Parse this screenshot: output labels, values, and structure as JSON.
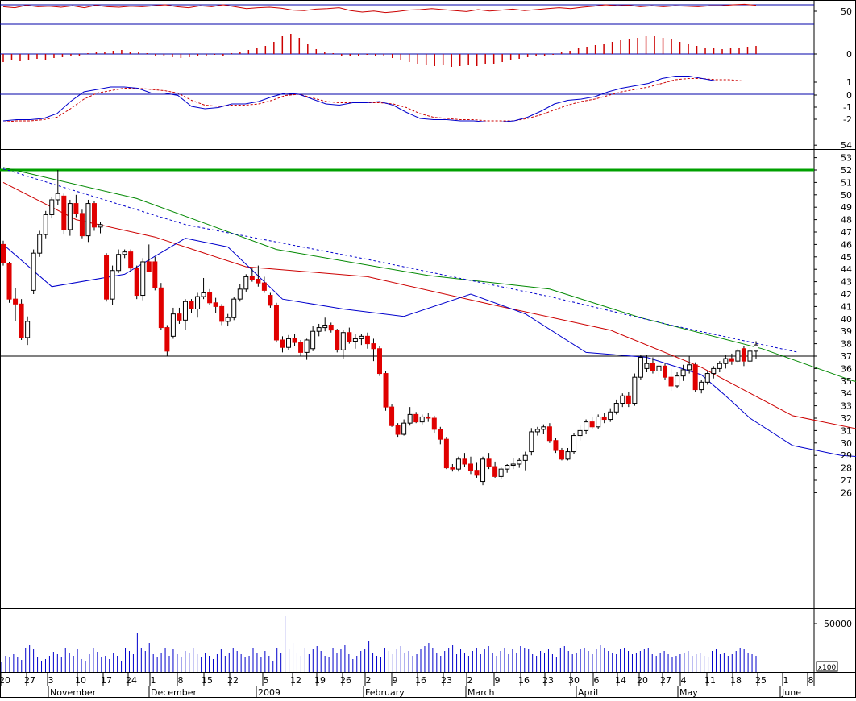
{
  "chart_data": {
    "type": "candlestick",
    "colors": {
      "up_candle": "#ffffff",
      "down_candle": "#e00000",
      "candle_outline": "#000000",
      "ma_short": "#0000cc",
      "ma_mid": "#cc0000",
      "ma_long": "#008800",
      "ma_dashed": "#0000cc",
      "resistance": "#00a000",
      "support": "#000000",
      "oscillator": "#cc0000",
      "histogram": "#cc0000",
      "macd": "#0000cc",
      "macd_signal": "#cc0000",
      "volume": "#0000cc",
      "panel_line": "#0000aa"
    },
    "price_axis": {
      "ticks": [
        "54",
        "53",
        "52",
        "51",
        "50",
        "49",
        "48",
        "47",
        "46",
        "45",
        "44",
        "43",
        "42",
        "41",
        "40",
        "39",
        "38",
        "37",
        "36",
        "35",
        "34",
        "33",
        "32",
        "31",
        "30",
        "29",
        "28",
        "27",
        "26"
      ],
      "range": [
        25,
        55
      ]
    },
    "horizontal_lines": [
      {
        "name": "resistance",
        "value": 52
      },
      {
        "name": "support",
        "value": 37
      }
    ],
    "oscillator_panel": {
      "ticks": [
        "50"
      ],
      "guide_levels": [
        70,
        30
      ]
    },
    "histogram_panel": {
      "ticks": [
        "0"
      ]
    },
    "macd_panel": {
      "ticks": [
        "1",
        "0",
        "-1",
        "-2"
      ]
    },
    "volume_panel": {
      "ticks": [
        "50000"
      ],
      "unit": "x100"
    },
    "date_ticks": [
      "20",
      "27",
      "3",
      "10",
      "17",
      "24",
      "1",
      "8",
      "15",
      "22",
      "5",
      "12",
      "19",
      "26",
      "2",
      "9",
      "16",
      "23",
      "2",
      "9",
      "16",
      "23",
      "30",
      "6",
      "14",
      "20",
      "27",
      "4",
      "11",
      "18",
      "25",
      "1",
      "8"
    ],
    "month_labels": [
      "November",
      "December",
      "2009",
      "February",
      "March",
      "April",
      "May",
      "June"
    ],
    "candles": [
      [
        46.0,
        46.3,
        44.3,
        44.5
      ],
      [
        44.5,
        44.6,
        41.3,
        41.6
      ],
      [
        41.6,
        42.5,
        39.8,
        41.2
      ],
      [
        41.2,
        41.6,
        38.3,
        38.5
      ],
      [
        38.5,
        40.2,
        37.9,
        39.8
      ],
      [
        42.3,
        45.6,
        42.0,
        45.3
      ],
      [
        45.3,
        47.1,
        45.0,
        46.8
      ],
      [
        46.8,
        48.7,
        46.5,
        48.4
      ],
      [
        48.4,
        49.8,
        48.1,
        49.6
      ],
      [
        49.6,
        52.0,
        49.2,
        50.1
      ],
      [
        49.9,
        50.1,
        46.8,
        47.2
      ],
      [
        47.2,
        49.6,
        46.7,
        49.3
      ],
      [
        49.3,
        50.0,
        48.2,
        48.5
      ],
      [
        48.5,
        48.8,
        46.5,
        46.7
      ],
      [
        46.7,
        49.6,
        46.2,
        49.3
      ],
      [
        49.3,
        49.5,
        47.1,
        47.4
      ],
      [
        47.4,
        47.8,
        46.9,
        47.6
      ],
      [
        45.1,
        45.3,
        41.4,
        41.6
      ],
      [
        41.6,
        44.3,
        41.1,
        43.9
      ],
      [
        43.9,
        45.6,
        43.7,
        45.2
      ],
      [
        45.2,
        45.6,
        44.9,
        45.4
      ],
      [
        45.4,
        45.6,
        43.8,
        44.1
      ],
      [
        44.1,
        44.3,
        41.6,
        41.9
      ],
      [
        41.9,
        44.9,
        41.5,
        44.6
      ],
      [
        44.6,
        46.0,
        43.8,
        43.8
      ],
      [
        44.6,
        45.0,
        42.3,
        42.5
      ],
      [
        42.5,
        42.9,
        39.1,
        39.3
      ],
      [
        39.3,
        39.5,
        37.0,
        37.4
      ],
      [
        38.6,
        40.9,
        38.4,
        40.4
      ],
      [
        40.4,
        40.9,
        39.6,
        39.9
      ],
      [
        39.9,
        41.6,
        39.1,
        41.4
      ],
      [
        41.4,
        41.6,
        40.5,
        40.8
      ],
      [
        40.8,
        42.1,
        40.1,
        41.8
      ],
      [
        41.8,
        43.3,
        41.6,
        42.1
      ],
      [
        42.1,
        42.4,
        41.1,
        41.3
      ],
      [
        41.3,
        41.7,
        40.5,
        41.0
      ],
      [
        41.0,
        41.2,
        39.5,
        39.8
      ],
      [
        39.8,
        40.4,
        39.4,
        40.1
      ],
      [
        40.1,
        41.8,
        39.9,
        41.6
      ],
      [
        41.6,
        42.8,
        41.4,
        42.4
      ],
      [
        42.4,
        43.6,
        42.2,
        43.4
      ],
      [
        43.4,
        44.1,
        43.0,
        43.2
      ],
      [
        43.2,
        44.3,
        42.6,
        42.9
      ],
      [
        42.9,
        43.4,
        42.1,
        42.3
      ],
      [
        41.9,
        42.1,
        40.9,
        41.1
      ],
      [
        41.1,
        41.3,
        38.1,
        38.3
      ],
      [
        38.3,
        38.6,
        37.3,
        37.7
      ],
      [
        37.7,
        38.7,
        37.5,
        38.4
      ],
      [
        38.4,
        38.8,
        37.8,
        38.1
      ],
      [
        38.1,
        38.3,
        37.0,
        37.3
      ],
      [
        37.3,
        38.4,
        36.7,
        38.3
      ],
      [
        37.6,
        39.4,
        37.4,
        39.0
      ],
      [
        39.0,
        39.6,
        38.6,
        39.3
      ],
      [
        39.3,
        40.1,
        39.0,
        39.5
      ],
      [
        39.5,
        39.7,
        38.9,
        39.1
      ],
      [
        39.1,
        39.2,
        37.3,
        37.5
      ],
      [
        37.5,
        39.1,
        36.8,
        38.9
      ],
      [
        38.9,
        39.3,
        38.0,
        38.2
      ],
      [
        38.2,
        38.8,
        37.6,
        38.4
      ],
      [
        38.4,
        38.8,
        37.9,
        38.6
      ],
      [
        38.6,
        38.9,
        37.6,
        38.0
      ],
      [
        38.0,
        38.4,
        36.6,
        37.6
      ],
      [
        37.6,
        37.8,
        35.4,
        35.6
      ],
      [
        35.6,
        35.8,
        32.6,
        32.9
      ],
      [
        32.9,
        33.1,
        31.3,
        31.4
      ],
      [
        31.4,
        31.6,
        30.5,
        30.7
      ],
      [
        30.7,
        31.9,
        30.6,
        31.6
      ],
      [
        31.6,
        32.9,
        31.4,
        32.3
      ],
      [
        32.3,
        32.5,
        31.6,
        31.7
      ],
      [
        31.7,
        32.3,
        31.5,
        32.1
      ],
      [
        32.1,
        32.4,
        31.7,
        32.0
      ],
      [
        32.0,
        32.2,
        30.8,
        31.1
      ],
      [
        31.1,
        31.3,
        29.9,
        30.3
      ],
      [
        30.3,
        30.5,
        27.9,
        28.0
      ],
      [
        28.0,
        28.3,
        27.7,
        27.9
      ],
      [
        27.9,
        28.9,
        27.7,
        28.7
      ],
      [
        28.7,
        29.2,
        28.1,
        28.3
      ],
      [
        28.3,
        28.9,
        27.5,
        27.8
      ],
      [
        27.8,
        28.4,
        27.2,
        27.4
      ],
      [
        26.9,
        28.9,
        26.6,
        28.7
      ],
      [
        28.7,
        29.2,
        27.9,
        28.1
      ],
      [
        28.1,
        28.5,
        27.2,
        27.3
      ],
      [
        27.3,
        28.1,
        27.1,
        27.9
      ],
      [
        27.9,
        28.3,
        27.6,
        28.2
      ],
      [
        28.2,
        28.8,
        27.9,
        28.3
      ],
      [
        28.3,
        28.8,
        28.0,
        28.6
      ],
      [
        28.6,
        29.3,
        27.8,
        29.0
      ],
      [
        29.3,
        31.2,
        29.0,
        30.9
      ],
      [
        30.9,
        31.3,
        30.6,
        31.1
      ],
      [
        31.1,
        31.5,
        30.7,
        31.3
      ],
      [
        31.3,
        31.6,
        30.0,
        30.2
      ],
      [
        30.2,
        30.4,
        29.2,
        29.4
      ],
      [
        29.4,
        29.6,
        28.6,
        28.7
      ],
      [
        28.7,
        29.6,
        28.6,
        29.3
      ],
      [
        29.3,
        30.8,
        29.1,
        30.6
      ],
      [
        30.6,
        31.4,
        30.2,
        31.0
      ],
      [
        31.0,
        31.9,
        30.7,
        31.7
      ],
      [
        31.7,
        32.1,
        31.1,
        31.3
      ],
      [
        31.3,
        32.3,
        31.1,
        32.1
      ],
      [
        32.1,
        32.4,
        31.6,
        31.9
      ],
      [
        31.9,
        32.8,
        31.7,
        32.5
      ],
      [
        32.5,
        33.5,
        32.3,
        33.2
      ],
      [
        33.2,
        34.0,
        32.9,
        33.8
      ],
      [
        33.8,
        34.1,
        32.9,
        33.2
      ],
      [
        33.2,
        35.6,
        33.0,
        35.3
      ],
      [
        35.3,
        37.1,
        35.1,
        36.9
      ],
      [
        36.0,
        37.1,
        35.7,
        36.4
      ],
      [
        36.4,
        36.9,
        35.6,
        35.8
      ],
      [
        35.8,
        37.0,
        35.3,
        36.2
      ],
      [
        36.2,
        36.4,
        35.1,
        35.3
      ],
      [
        35.3,
        36.0,
        34.2,
        34.6
      ],
      [
        34.6,
        35.7,
        34.4,
        35.4
      ],
      [
        35.4,
        36.3,
        35.0,
        35.9
      ],
      [
        35.9,
        37.0,
        35.6,
        36.3
      ],
      [
        36.3,
        36.5,
        34.1,
        34.3
      ],
      [
        34.3,
        35.1,
        34.0,
        34.9
      ],
      [
        34.9,
        35.8,
        34.7,
        35.6
      ],
      [
        35.6,
        36.2,
        35.2,
        36.0
      ],
      [
        36.0,
        36.6,
        35.7,
        36.4
      ],
      [
        36.4,
        37.1,
        36.0,
        36.8
      ],
      [
        36.8,
        37.2,
        36.3,
        36.6
      ],
      [
        36.6,
        37.6,
        36.5,
        37.4
      ],
      [
        37.6,
        37.8,
        36.2,
        36.6
      ],
      [
        36.6,
        37.7,
        36.5,
        37.4
      ],
      [
        37.4,
        38.2,
        36.8,
        37.9
      ]
    ],
    "ma_short_points": [
      [
        0,
        46.0
      ],
      [
        8,
        42.6
      ],
      [
        20,
        43.6
      ],
      [
        30,
        46.5
      ],
      [
        37,
        45.8
      ],
      [
        46,
        41.6
      ],
      [
        56,
        40.8
      ],
      [
        66,
        40.2
      ],
      [
        77,
        42.0
      ],
      [
        86,
        40.4
      ],
      [
        96,
        37.3
      ],
      [
        106,
        36.9
      ],
      [
        115,
        35.5
      ],
      [
        119,
        33.8
      ],
      [
        123,
        32.0
      ],
      [
        130,
        29.8
      ],
      [
        138,
        29.0
      ],
      [
        147,
        28.7
      ],
      [
        150,
        29.6
      ],
      [
        156,
        31.5
      ],
      [
        163,
        32.4
      ],
      [
        170,
        33.0
      ],
      [
        178,
        34.4
      ],
      [
        184,
        35.5
      ],
      [
        188,
        36.0
      ]
    ],
    "ma_mid_points": [
      [
        0,
        51.0
      ],
      [
        12,
        48.0
      ],
      [
        25,
        46.6
      ],
      [
        40,
        44.2
      ],
      [
        60,
        43.4
      ],
      [
        80,
        41.2
      ],
      [
        100,
        39.1
      ],
      [
        115,
        36.1
      ],
      [
        130,
        32.2
      ],
      [
        145,
        30.7
      ],
      [
        160,
        30.4
      ],
      [
        168,
        31.0
      ],
      [
        178,
        31.6
      ],
      [
        184,
        32.1
      ],
      [
        188,
        32.8
      ]
    ],
    "ma_long_points": [
      [
        0,
        52.2
      ],
      [
        22,
        49.7
      ],
      [
        45,
        45.6
      ],
      [
        70,
        43.5
      ],
      [
        90,
        42.4
      ],
      [
        105,
        40.1
      ],
      [
        125,
        37.6
      ],
      [
        140,
        35.0
      ],
      [
        156,
        33.6
      ],
      [
        170,
        32.9
      ],
      [
        180,
        32.6
      ],
      [
        187,
        32.5
      ]
    ],
    "ma_dashed_points": [
      [
        0,
        52.1
      ],
      [
        30,
        47.6
      ],
      [
        60,
        44.8
      ],
      [
        90,
        41.8
      ],
      [
        110,
        39.5
      ],
      [
        131,
        37.3
      ]
    ],
    "oscillator_values": [
      66,
      64,
      69,
      66,
      67,
      65,
      68,
      64,
      69,
      66,
      65,
      67,
      66,
      68,
      70,
      66,
      64,
      68,
      66,
      70,
      66,
      62,
      64,
      65,
      63,
      59,
      58,
      61,
      62,
      64,
      58,
      55,
      57,
      54,
      56,
      59,
      60,
      62,
      60,
      58,
      56,
      60,
      57,
      59,
      61,
      58,
      60,
      62,
      64,
      62,
      65,
      67,
      70,
      68,
      69,
      66,
      68,
      66,
      68,
      67,
      66,
      68,
      68,
      70,
      71,
      69
    ],
    "histogram_values": [
      -10,
      -8,
      -9,
      -7,
      -6,
      -8,
      -5,
      -4,
      -3,
      -2,
      1,
      2,
      3,
      4,
      5,
      3,
      2,
      1,
      -2,
      -3,
      -4,
      -5,
      -4,
      -3,
      -2,
      -1,
      -2,
      1,
      3,
      5,
      7,
      10,
      15,
      22,
      25,
      20,
      12,
      6,
      2,
      1,
      -2,
      -3,
      -2,
      -1,
      -2,
      -3,
      -5,
      -8,
      -10,
      -12,
      -14,
      -15,
      -14,
      -16,
      -15,
      -14,
      -15,
      -13,
      -12,
      -10,
      -8,
      -6,
      -4,
      -3,
      -2,
      -1,
      2,
      4,
      7,
      9,
      11,
      13,
      15,
      17,
      19,
      20,
      22,
      22,
      20,
      18,
      15,
      13,
      10,
      8,
      7,
      6,
      7,
      8,
      9,
      10
    ],
    "macd_values": [
      -2.2,
      -2.1,
      -2.1,
      -2.0,
      -1.6,
      -0.6,
      0.2,
      0.4,
      0.6,
      0.6,
      0.5,
      0.1,
      0.1,
      -0.1,
      -1.0,
      -1.2,
      -1.1,
      -0.8,
      -0.8,
      -0.6,
      -0.2,
      0.1,
      0.0,
      -0.4,
      -0.8,
      -0.9,
      -0.7,
      -0.7,
      -0.6,
      -0.9,
      -1.5,
      -2.0,
      -2.1,
      -2.1,
      -2.2,
      -2.2,
      -2.3,
      -2.3,
      -2.2,
      -1.9,
      -1.4,
      -0.8,
      -0.5,
      -0.4,
      -0.2,
      0.2,
      0.5,
      0.7,
      0.9,
      1.3,
      1.5,
      1.5,
      1.3,
      1.1,
      1.1,
      1.1,
      1.1
    ],
    "macd_signal_values": [
      -2.3,
      -2.2,
      -2.2,
      -2.1,
      -1.9,
      -1.2,
      -0.4,
      0.1,
      0.3,
      0.5,
      0.5,
      0.4,
      0.3,
      0.1,
      -0.5,
      -0.9,
      -1.0,
      -0.9,
      -0.9,
      -0.8,
      -0.5,
      -0.1,
      0.0,
      -0.3,
      -0.6,
      -0.7,
      -0.7,
      -0.7,
      -0.7,
      -0.8,
      -1.1,
      -1.6,
      -1.9,
      -2.0,
      -2.1,
      -2.1,
      -2.2,
      -2.2,
      -2.2,
      -2.0,
      -1.7,
      -1.3,
      -0.9,
      -0.6,
      -0.4,
      -0.1,
      0.2,
      0.4,
      0.6,
      0.9,
      1.2,
      1.3,
      1.3,
      1.2,
      1.2,
      1.1,
      1.1
    ],
    "volume_values": [
      12,
      20,
      18,
      22,
      19,
      15,
      30,
      34,
      28,
      18,
      14,
      16,
      20,
      25,
      22,
      18,
      30,
      24,
      20,
      28,
      16,
      14,
      22,
      30,
      25,
      18,
      20,
      16,
      24,
      20,
      14,
      30,
      26,
      22,
      48,
      30,
      26,
      36,
      22,
      18,
      24,
      30,
      20,
      28,
      22,
      18,
      26,
      24,
      30,
      22,
      18,
      24,
      20,
      16,
      22,
      28,
      20,
      24,
      30,
      26,
      22,
      18,
      20,
      30,
      24,
      18,
      26,
      20,
      14,
      30,
      24,
      70,
      28,
      36,
      24,
      20,
      30,
      22,
      28,
      32,
      26,
      20,
      18,
      30,
      24,
      28,
      34,
      22,
      16,
      20,
      26,
      28,
      38,
      24,
      20,
      18,
      30,
      26,
      22,
      28,
      32,
      24,
      26,
      20,
      22,
      28,
      32,
      36,
      30,
      24,
      20,
      26,
      30,
      34,
      22,
      28,
      24,
      20,
      26,
      30,
      22,
      28,
      32,
      24,
      20,
      26,
      30,
      22,
      28,
      24,
      32,
      30,
      28,
      22,
      20,
      26,
      24,
      28,
      22,
      18,
      30,
      32,
      26,
      22,
      24,
      28,
      30,
      26,
      22,
      28,
      34,
      30,
      26,
      24,
      22,
      28,
      30,
      26,
      22,
      24,
      26,
      28,
      30,
      22,
      20,
      24,
      26,
      22,
      18,
      20,
      22,
      24,
      26,
      20,
      22,
      24,
      20,
      18,
      26,
      28,
      22,
      24,
      20,
      22,
      26,
      30,
      28,
      24,
      22,
      20
    ],
    "tick_label_every": 1
  }
}
